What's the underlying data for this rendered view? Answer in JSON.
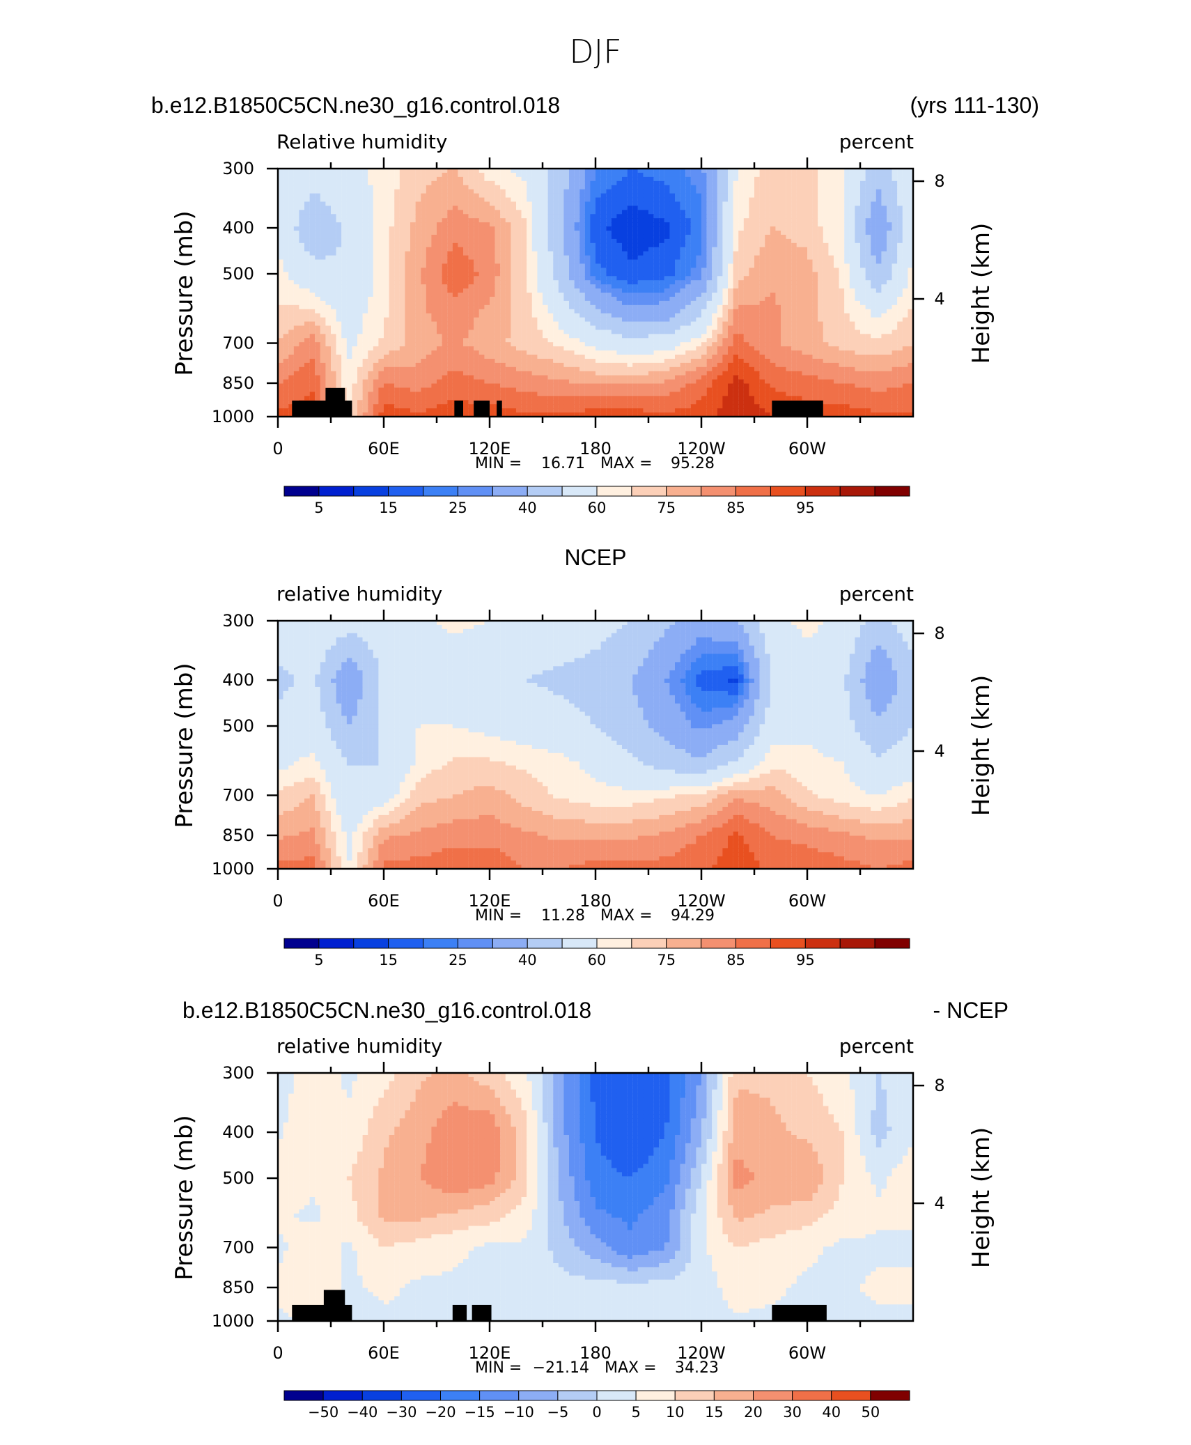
{
  "page_title": "DJF",
  "panels": [
    {
      "top_left": "b.e12.B1850C5CN.ne30_g16.control.018",
      "top_right": "(yrs 111-130)",
      "center_title": "",
      "variable": "Relative humidity",
      "units": "percent",
      "ylabel_left": "Pressure (mb)",
      "ylabel_right": "Height (km)",
      "stats": {
        "min_label": "MIN =",
        "min": "16.71",
        "max_label": "MAX =",
        "max": "95.28"
      },
      "colorbar_labels": [
        "5",
        "15",
        "25",
        "40",
        "60",
        "75",
        "85",
        "95"
      ]
    },
    {
      "top_left": "",
      "top_right": "",
      "center_title": "NCEP",
      "variable": "relative humidity",
      "units": "percent",
      "ylabel_left": "Pressure (mb)",
      "ylabel_right": "Height (km)",
      "stats": {
        "min_label": "MIN =",
        "min": "11.28",
        "max_label": "MAX =",
        "max": "94.29"
      },
      "colorbar_labels": [
        "5",
        "15",
        "25",
        "40",
        "60",
        "75",
        "85",
        "95"
      ]
    },
    {
      "top_left": "b.e12.B1850C5CN.ne30_g16.control.018",
      "top_right": "- NCEP",
      "center_title": "",
      "variable": "relative humidity",
      "units": "percent",
      "ylabel_left": "Pressure (mb)",
      "ylabel_right": "Height (km)",
      "stats": {
        "min_label": "MIN =",
        "min": "−21.14",
        "max_label": "MAX =",
        "max": "34.23"
      },
      "colorbar_labels": [
        "−50",
        "−40",
        "−30",
        "−20",
        "−15",
        "−10",
        "−5",
        "0",
        "5",
        "10",
        "15",
        "20",
        "30",
        "40",
        "50"
      ]
    }
  ],
  "chart_data": [
    {
      "type": "heatmap",
      "title": "b.e12.B1850C5CN.ne30_g16.control.018 (yrs 111-130)",
      "variable": "Relative humidity",
      "units": "percent",
      "x_axis": {
        "range_deg": [
          0,
          360
        ],
        "ticks": [
          "0",
          "60E",
          "120E",
          "180",
          "120W",
          "60W"
        ]
      },
      "y_left": {
        "label": "Pressure (mb)",
        "ticks": [
          300,
          400,
          500,
          700,
          850,
          1000
        ],
        "scale": "log",
        "reversed": true
      },
      "y_right": {
        "label": "Height (km)",
        "ticks": [
          4,
          8
        ]
      },
      "levels": [
        0,
        5,
        10,
        15,
        20,
        25,
        30,
        40,
        50,
        60,
        65,
        70,
        75,
        80,
        85,
        90,
        95,
        100
      ],
      "colors": [
        "#00008f",
        "#0020d0",
        "#0840e0",
        "#2060f0",
        "#3c80f5",
        "#6090f5",
        "#8cadf5",
        "#b4cdf5",
        "#d8e8f8",
        "#fff0e0",
        "#fcd0b8",
        "#f8b090",
        "#f49070",
        "#f07048",
        "#e85020",
        "#cc3010",
        "#a81808",
        "#800000"
      ],
      "min": 16.71,
      "max": 95.28,
      "grid": {
        "lons": [
          0,
          20,
          40,
          60,
          80,
          100,
          120,
          140,
          160,
          180,
          200,
          220,
          240,
          260,
          280,
          300,
          320,
          340,
          360
        ],
        "levs": [
          300,
          400,
          500,
          600,
          700,
          850,
          1000
        ],
        "values": [
          [
            60,
            55,
            58,
            62,
            68,
            70,
            62,
            58,
            45,
            25,
            20,
            22,
            28,
            60,
            68,
            66,
            62,
            45,
            60
          ],
          [
            58,
            42,
            52,
            63,
            72,
            78,
            76,
            66,
            42,
            16,
            12,
            14,
            22,
            64,
            70,
            68,
            60,
            30,
            58
          ],
          [
            62,
            54,
            50,
            64,
            74,
            84,
            78,
            66,
            46,
            22,
            16,
            18,
            28,
            68,
            74,
            72,
            64,
            42,
            62
          ],
          [
            66,
            66,
            56,
            64,
            74,
            78,
            74,
            68,
            56,
            42,
            32,
            34,
            48,
            76,
            76,
            72,
            66,
            58,
            66
          ],
          [
            70,
            78,
            58,
            66,
            72,
            76,
            72,
            68,
            64,
            58,
            54,
            56,
            64,
            82,
            76,
            72,
            68,
            66,
            70
          ],
          [
            80,
            84,
            62,
            80,
            78,
            82,
            80,
            78,
            76,
            74,
            74,
            76,
            82,
            92,
            84,
            82,
            80,
            78,
            80
          ],
          [
            86,
            88,
            64,
            88,
            86,
            88,
            88,
            86,
            86,
            88,
            88,
            86,
            88,
            94,
            90,
            88,
            88,
            86,
            86
          ]
        ]
      },
      "topography_masks": [
        {
          "lon": [
            8,
            42
          ],
          "p_top": 925
        },
        {
          "lon": [
            27,
            38
          ],
          "p_top": 870
        },
        {
          "lon": [
            100,
            105
          ],
          "p_top": 925
        },
        {
          "lon": [
            111,
            120
          ],
          "p_top": 925
        },
        {
          "lon": [
            124,
            127
          ],
          "p_top": 925
        },
        {
          "lon": [
            280,
            309
          ],
          "p_top": 925
        }
      ]
    },
    {
      "type": "heatmap",
      "title": "NCEP",
      "variable": "relative humidity",
      "units": "percent",
      "x_axis": {
        "range_deg": [
          0,
          360
        ],
        "ticks": [
          "0",
          "60E",
          "120E",
          "180",
          "120W",
          "60W"
        ]
      },
      "y_left": {
        "label": "Pressure (mb)",
        "ticks": [
          300,
          400,
          500,
          700,
          850,
          1000
        ],
        "scale": "log",
        "reversed": true
      },
      "y_right": {
        "label": "Height (km)",
        "ticks": [
          4,
          8
        ]
      },
      "levels": [
        0,
        5,
        10,
        15,
        20,
        25,
        30,
        40,
        50,
        60,
        65,
        70,
        75,
        80,
        85,
        90,
        95,
        100
      ],
      "colors": [
        "#00008f",
        "#0020d0",
        "#0840e0",
        "#2060f0",
        "#3c80f5",
        "#6090f5",
        "#8cadf5",
        "#b4cdf5",
        "#d8e8f8",
        "#fff0e0",
        "#fcd0b8",
        "#f8b090",
        "#f49070",
        "#f07048",
        "#e85020",
        "#cc3010",
        "#a81808",
        "#800000"
      ],
      "min": 11.28,
      "max": 94.29,
      "grid": {
        "lons": [
          0,
          20,
          40,
          60,
          80,
          100,
          120,
          140,
          160,
          180,
          200,
          220,
          240,
          260,
          280,
          300,
          320,
          340,
          360
        ],
        "levs": [
          300,
          400,
          500,
          600,
          700,
          850,
          1000
        ],
        "values": [
          [
            55,
            60,
            55,
            56,
            58,
            62,
            60,
            58,
            56,
            54,
            50,
            42,
            34,
            40,
            58,
            62,
            58,
            46,
            56
          ],
          [
            48,
            52,
            30,
            52,
            56,
            54,
            52,
            50,
            48,
            46,
            40,
            30,
            18,
            14,
            50,
            56,
            52,
            30,
            46
          ],
          [
            52,
            56,
            40,
            52,
            60,
            60,
            58,
            56,
            54,
            50,
            44,
            36,
            28,
            34,
            56,
            58,
            54,
            42,
            50
          ],
          [
            58,
            62,
            50,
            50,
            62,
            66,
            66,
            64,
            62,
            58,
            52,
            46,
            42,
            52,
            64,
            62,
            60,
            52,
            56
          ],
          [
            66,
            70,
            52,
            56,
            68,
            70,
            72,
            68,
            64,
            62,
            62,
            64,
            66,
            74,
            72,
            66,
            62,
            60,
            64
          ],
          [
            74,
            76,
            58,
            74,
            76,
            78,
            78,
            76,
            74,
            74,
            74,
            76,
            80,
            86,
            80,
            78,
            76,
            74,
            74
          ],
          [
            82,
            82,
            60,
            82,
            82,
            84,
            84,
            80,
            80,
            82,
            82,
            82,
            84,
            88,
            84,
            84,
            82,
            80,
            82
          ]
        ]
      },
      "topography_masks": []
    },
    {
      "type": "heatmap",
      "title": "b.e12.B1850C5CN.ne30_g16.control.018 - NCEP",
      "variable": "relative humidity",
      "units": "percent",
      "x_axis": {
        "range_deg": [
          0,
          360
        ],
        "ticks": [
          "0",
          "60E",
          "120E",
          "180",
          "120W",
          "60W"
        ]
      },
      "y_left": {
        "label": "Pressure (mb)",
        "ticks": [
          300,
          400,
          500,
          700,
          850,
          1000
        ],
        "scale": "log",
        "reversed": true
      },
      "y_right": {
        "label": "Height (km)",
        "ticks": [
          4,
          8
        ]
      },
      "levels": [
        -100,
        -50,
        -40,
        -30,
        -20,
        -15,
        -10,
        -5,
        0,
        5,
        10,
        15,
        20,
        30,
        40,
        50,
        100
      ],
      "colors": [
        "#00008f",
        "#0020d0",
        "#0840e0",
        "#2060f0",
        "#3c80f5",
        "#6090f5",
        "#8cadf5",
        "#b4cdf5",
        "#d8e8f8",
        "#fff0e0",
        "#fcd0b8",
        "#f8b090",
        "#f49070",
        "#f07048",
        "#e85020",
        "#800000"
      ],
      "min": -21.14,
      "max": 34.23,
      "grid": {
        "lons": [
          0,
          20,
          40,
          60,
          80,
          100,
          120,
          140,
          160,
          180,
          200,
          220,
          240,
          260,
          280,
          300,
          320,
          340,
          360
        ],
        "levs": [
          300,
          400,
          500,
          600,
          700,
          850,
          1000
        ],
        "values": [
          [
            2,
            8,
            4,
            8,
            14,
            16,
            12,
            6,
            -8,
            -22,
            -25,
            -22,
            -10,
            14,
            14,
            10,
            6,
            0,
            2
          ],
          [
            4,
            10,
            6,
            14,
            18,
            24,
            24,
            12,
            -8,
            -20,
            -26,
            -20,
            -6,
            18,
            16,
            14,
            10,
            -2,
            4
          ],
          [
            8,
            6,
            10,
            16,
            20,
            24,
            22,
            12,
            -6,
            -18,
            -20,
            -16,
            0,
            22,
            18,
            20,
            10,
            4,
            8
          ],
          [
            6,
            4,
            8,
            16,
            16,
            14,
            12,
            8,
            -4,
            -14,
            -16,
            -12,
            4,
            16,
            14,
            12,
            8,
            6,
            6
          ],
          [
            4,
            8,
            4,
            10,
            8,
            6,
            4,
            4,
            -2,
            -8,
            -14,
            -10,
            4,
            10,
            8,
            6,
            4,
            4,
            4
          ],
          [
            6,
            10,
            4,
            6,
            4,
            4,
            4,
            4,
            2,
            2,
            2,
            2,
            2,
            8,
            6,
            4,
            4,
            6,
            6
          ],
          [
            4,
            6,
            2,
            4,
            4,
            4,
            2,
            2,
            2,
            2,
            2,
            2,
            2,
            4,
            4,
            4,
            4,
            4,
            4
          ]
        ]
      },
      "topography_masks": [
        {
          "lon": [
            8,
            42
          ],
          "p_top": 925
        },
        {
          "lon": [
            26,
            38
          ],
          "p_top": 860
        },
        {
          "lon": [
            99,
            107
          ],
          "p_top": 925
        },
        {
          "lon": [
            110,
            121
          ],
          "p_top": 925
        },
        {
          "lon": [
            280,
            311
          ],
          "p_top": 925
        }
      ]
    }
  ]
}
